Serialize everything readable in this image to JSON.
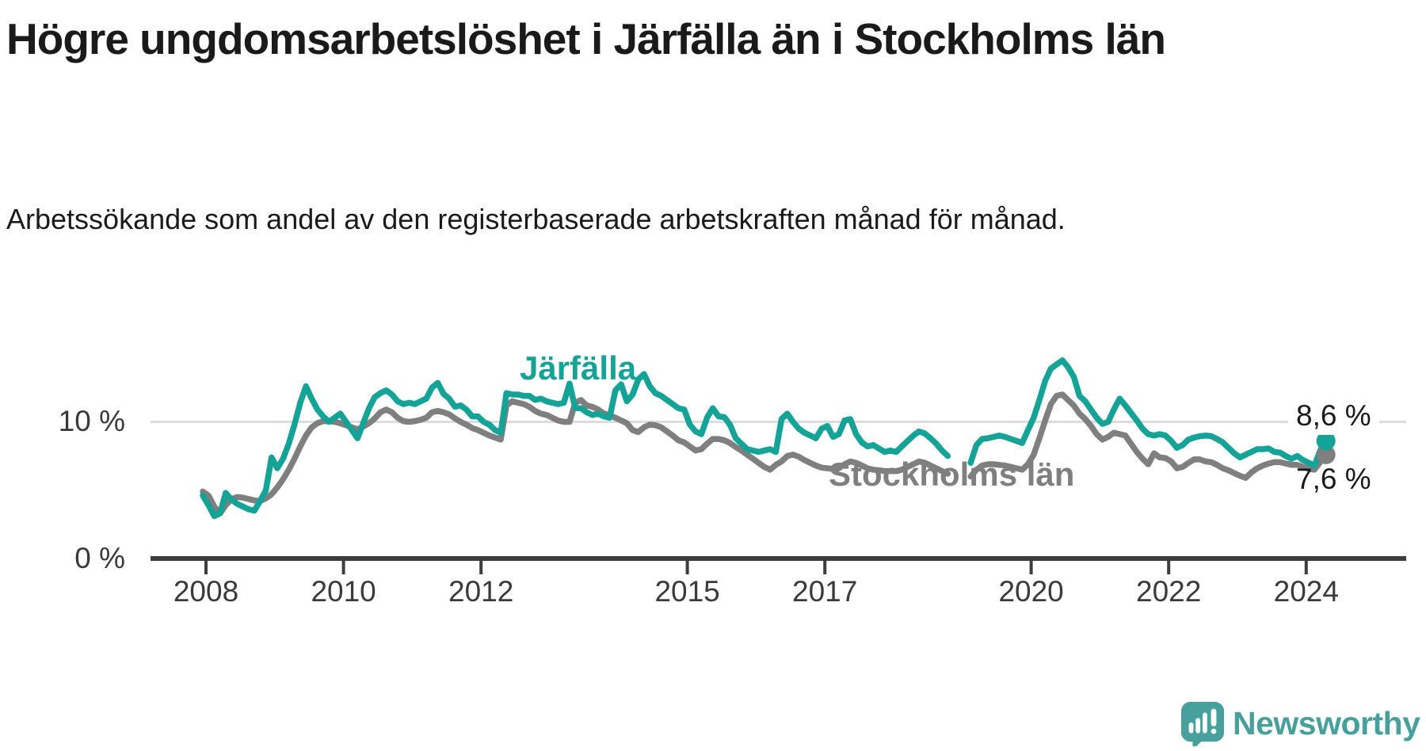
{
  "chart_data": {
    "type": "line",
    "title": "Högre ungdomsarbetslöshet i Järfälla än i Stockholms län",
    "subtitle": "Arbetssökande som andel av den registerbaserade arbetskraften månad för månad.",
    "unit": "%",
    "frequency": "monthly",
    "x_start": "2008-01",
    "x_end": "2024-05",
    "ylim": [
      0,
      18
    ],
    "grid_y_values": [
      10
    ],
    "legend_position": "inline-labels",
    "y_ticks": [
      {
        "value": 0,
        "label": "0 %"
      },
      {
        "value": 10,
        "label": "10 %"
      }
    ],
    "x_tick_years": [
      2008,
      2010,
      2012,
      2015,
      2017,
      2020,
      2022,
      2024
    ],
    "data_gap_note": "values missing Dec 2018 - Feb 2019",
    "series": [
      {
        "id": "jarfalla",
        "name": "Järfälla",
        "color": "#14a396",
        "end_label": "8,6 %",
        "end_value": 8.6,
        "values": [
          4.6,
          3.9,
          3.1,
          3.3,
          4.8,
          4.3,
          4.0,
          3.8,
          3.6,
          3.5,
          4.2,
          5.0,
          7.4,
          6.6,
          7.3,
          8.4,
          9.8,
          11.4,
          12.6,
          11.7,
          10.9,
          10.4,
          10.0,
          10.3,
          10.6,
          10.0,
          9.4,
          8.8,
          9.9,
          11.0,
          11.8,
          12.1,
          12.3,
          12.0,
          11.5,
          11.3,
          11.4,
          11.3,
          11.5,
          11.7,
          12.5,
          12.85,
          12.05,
          11.7,
          11.1,
          11.2,
          10.9,
          10.4,
          10.4,
          10.0,
          9.8,
          9.4,
          9.2,
          12.1,
          12.0,
          12.0,
          11.9,
          11.9,
          11.6,
          11.7,
          11.5,
          11.4,
          11.3,
          11.4,
          12.8,
          11.0,
          11.0,
          10.7,
          10.5,
          10.6,
          10.4,
          10.3,
          12.3,
          12.75,
          11.5,
          12.0,
          13.1,
          13.5,
          12.6,
          12.1,
          11.9,
          11.6,
          11.3,
          11.0,
          10.9,
          9.8,
          9.3,
          9.1,
          10.3,
          11.0,
          10.4,
          10.35,
          9.8,
          8.8,
          8.4,
          8.0,
          7.9,
          7.8,
          7.9,
          8.0,
          7.8,
          10.2,
          10.6,
          10.0,
          9.5,
          9.2,
          9.0,
          8.8,
          9.5,
          9.7,
          8.9,
          9.1,
          10.1,
          10.2,
          9.1,
          8.5,
          8.2,
          8.3,
          8.05,
          7.8,
          7.9,
          7.8,
          8.2,
          8.6,
          9.0,
          9.3,
          9.15,
          8.8,
          8.4,
          7.9,
          7.5,
          null,
          null,
          null,
          7.0,
          8.3,
          8.75,
          8.8,
          8.9,
          9.0,
          8.9,
          8.75,
          8.6,
          8.45,
          9.4,
          10.3,
          11.6,
          13.0,
          13.9,
          14.2,
          14.5,
          14.0,
          13.3,
          11.9,
          11.5,
          10.9,
          10.3,
          9.85,
          10.0,
          10.9,
          11.7,
          11.2,
          10.65,
          10.1,
          9.5,
          9.1,
          9.0,
          9.1,
          9.0,
          8.6,
          8.1,
          8.3,
          8.7,
          8.85,
          8.95,
          9.0,
          8.95,
          8.75,
          8.5,
          8.1,
          7.7,
          7.4,
          7.6,
          7.8,
          8.0,
          8.0,
          8.05,
          7.8,
          7.75,
          7.5,
          7.3,
          7.5,
          7.2,
          7.0,
          6.8,
          7.9,
          8.6
        ]
      },
      {
        "id": "stockholms-lan",
        "name": "Stockholms län",
        "color": "#7f7f7f",
        "end_label": "7,6 %",
        "end_value": 7.6,
        "values": [
          4.9,
          4.6,
          3.8,
          3.3,
          3.9,
          4.35,
          4.5,
          4.45,
          4.35,
          4.25,
          4.2,
          4.4,
          4.7,
          5.2,
          5.8,
          6.5,
          7.3,
          8.2,
          9.0,
          9.6,
          9.9,
          10.05,
          10.05,
          10.0,
          9.9,
          9.75,
          9.6,
          9.45,
          9.65,
          9.9,
          10.25,
          10.7,
          10.9,
          10.7,
          10.3,
          10.05,
          10.0,
          10.05,
          10.15,
          10.3,
          10.7,
          10.8,
          10.7,
          10.55,
          10.25,
          10.0,
          9.8,
          9.55,
          9.4,
          9.2,
          9.0,
          8.85,
          8.7,
          11.2,
          11.5,
          11.4,
          11.3,
          11.1,
          10.8,
          10.6,
          10.5,
          10.3,
          10.1,
          10.0,
          10.0,
          11.4,
          11.6,
          11.2,
          11.1,
          10.9,
          10.6,
          10.5,
          10.3,
          10.1,
          9.9,
          9.4,
          9.25,
          9.6,
          9.8,
          9.75,
          9.6,
          9.3,
          9.0,
          8.65,
          8.5,
          8.2,
          7.9,
          8.0,
          8.4,
          8.75,
          8.75,
          8.65,
          8.45,
          8.15,
          7.9,
          7.6,
          7.3,
          7.0,
          6.7,
          6.5,
          6.85,
          7.1,
          7.5,
          7.6,
          7.45,
          7.2,
          7.0,
          6.8,
          6.65,
          6.6,
          6.55,
          6.6,
          6.9,
          7.1,
          7.0,
          6.8,
          6.6,
          6.5,
          6.45,
          6.4,
          6.4,
          6.4,
          6.5,
          6.7,
          6.9,
          7.1,
          7.0,
          6.8,
          6.6,
          6.4,
          6.2,
          null,
          null,
          null,
          6.0,
          6.5,
          6.8,
          6.9,
          6.9,
          6.85,
          6.8,
          6.7,
          6.6,
          6.5,
          6.9,
          7.6,
          8.8,
          10.1,
          11.3,
          11.9,
          12.0,
          11.6,
          11.2,
          10.6,
          10.2,
          9.7,
          9.1,
          8.7,
          8.9,
          9.2,
          9.1,
          9.0,
          8.4,
          7.8,
          7.3,
          6.9,
          7.7,
          7.4,
          7.35,
          7.1,
          6.6,
          6.7,
          7.0,
          7.25,
          7.25,
          7.1,
          7.05,
          6.85,
          6.6,
          6.45,
          6.25,
          6.05,
          5.9,
          6.3,
          6.6,
          6.8,
          6.95,
          7.05,
          7.05,
          6.95,
          6.85,
          6.85,
          6.7,
          6.55,
          6.5,
          7.05,
          7.6
        ]
      }
    ]
  },
  "colors": {
    "accent_teal": "#14a396",
    "series_gray": "#7f7f7f",
    "gridline": "#dcdcdc",
    "axis": "#3d3d3d",
    "text": "#1a1a1a",
    "brand_teal": "#47a09b"
  },
  "footer": {
    "brand": "Newsworthy"
  }
}
